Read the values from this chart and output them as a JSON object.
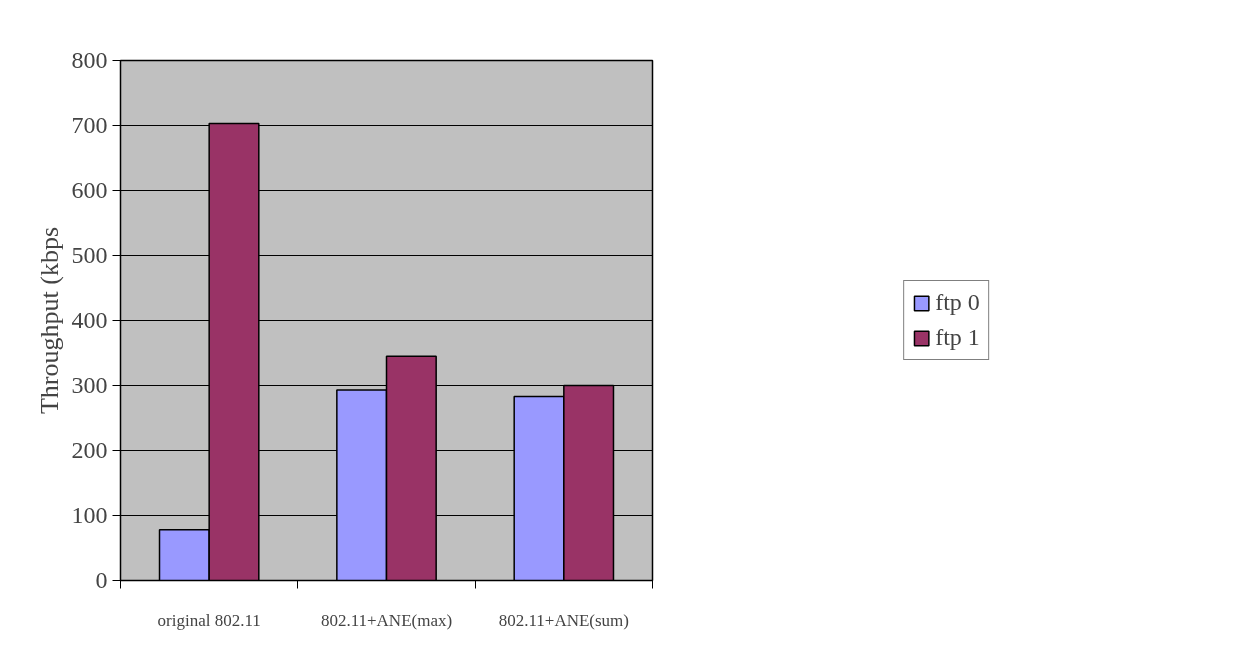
{
  "chart_data": {
    "type": "bar",
    "ylabel": "Throughput (kbps",
    "categories": [
      "original 802.11",
      "802.11+ANE(max)",
      "802.11+ANE(sum)"
    ],
    "series": [
      {
        "name": "ftp 0",
        "color": "#9999ff",
        "values": [
          78,
          293,
          283
        ]
      },
      {
        "name": "ftp 1",
        "color": "#993366",
        "values": [
          703,
          345,
          300
        ]
      }
    ],
    "ylim": [
      0,
      800
    ],
    "yticks": [
      0,
      100,
      200,
      300,
      400,
      500,
      600,
      700,
      800
    ],
    "grid": "y",
    "legend": "right"
  }
}
